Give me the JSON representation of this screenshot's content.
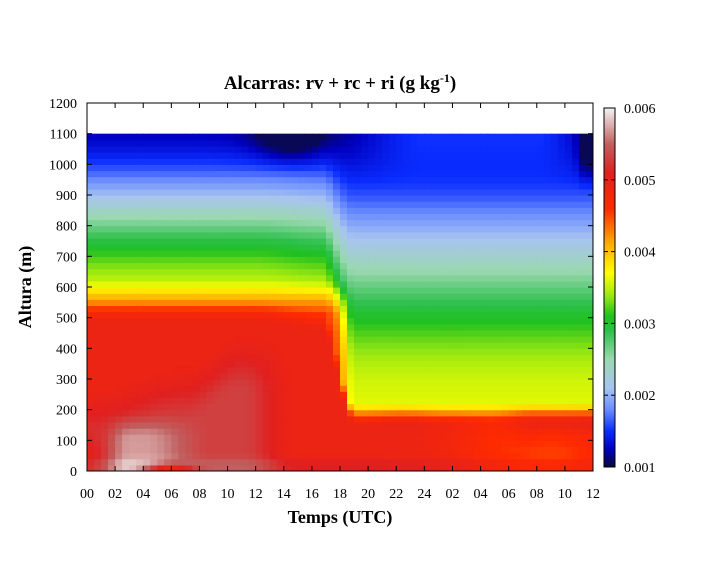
{
  "chart_data": {
    "type": "heatmap",
    "title": "Alcarras: rv + rc + ri (g kg",
    "title_sup": "-1",
    "title_end": ")",
    "xlabel": "Temps (UTC)",
    "ylabel": "Altura (m)",
    "x_ticks": [
      "00",
      "02",
      "04",
      "06",
      "08",
      "10",
      "12",
      "14",
      "16",
      "18",
      "20",
      "22",
      "24",
      "02",
      "04",
      "06",
      "08",
      "10",
      "12"
    ],
    "y_ticks": [
      "0",
      "100",
      "200",
      "300",
      "400",
      "500",
      "600",
      "700",
      "800",
      "900",
      "1000",
      "1100",
      "1200"
    ],
    "ylim": [
      0,
      1200
    ],
    "data_top": 1100,
    "colorbar": {
      "range": [
        0.001,
        0.006
      ],
      "ticks": [
        "0.001",
        "0.002",
        "0.003",
        "0.004",
        "0.005",
        "0.006"
      ],
      "stops": [
        {
          "v": 0.001,
          "color": "#0a0a3a"
        },
        {
          "v": 0.00125,
          "color": "#0000c0"
        },
        {
          "v": 0.0015,
          "color": "#0a2cff"
        },
        {
          "v": 0.0018,
          "color": "#6a8cff"
        },
        {
          "v": 0.0021,
          "color": "#a8c4f0"
        },
        {
          "v": 0.0025,
          "color": "#9ad8b0"
        },
        {
          "v": 0.0029,
          "color": "#2cc04a"
        },
        {
          "v": 0.0031,
          "color": "#20c020"
        },
        {
          "v": 0.0034,
          "color": "#a0ea10"
        },
        {
          "v": 0.0037,
          "color": "#ffff00"
        },
        {
          "v": 0.0041,
          "color": "#ffb000"
        },
        {
          "v": 0.0046,
          "color": "#ff2a00"
        },
        {
          "v": 0.0051,
          "color": "#e02020"
        },
        {
          "v": 0.0055,
          "color": "#c06060"
        },
        {
          "v": 0.006,
          "color": "#f4f4f4"
        }
      ]
    }
  }
}
